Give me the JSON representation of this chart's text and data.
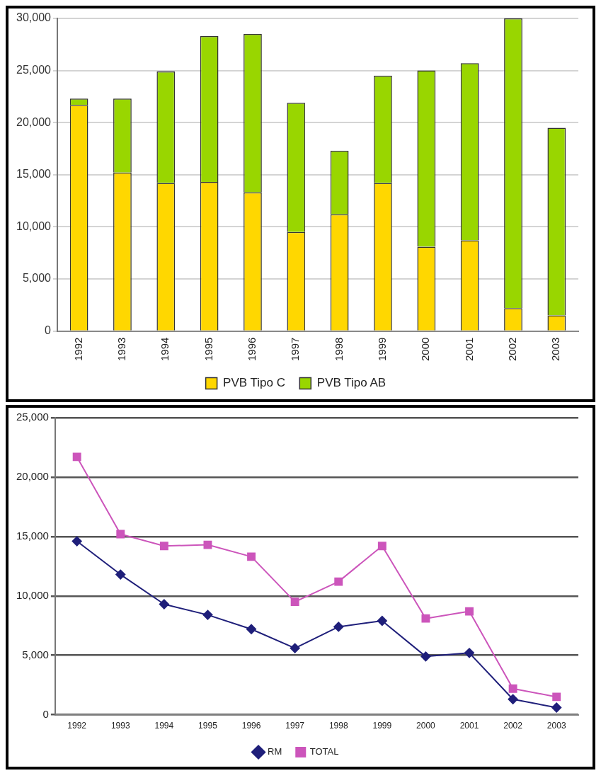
{
  "chart_data": [
    {
      "type": "bar",
      "stacked": true,
      "categories": [
        "1992",
        "1993",
        "1994",
        "1995",
        "1996",
        "1997",
        "1998",
        "1999",
        "2000",
        "2001",
        "2002",
        "2003"
      ],
      "series": [
        {
          "name": "PVB Tipo C",
          "color": "#ffd700",
          "values": [
            21700,
            15200,
            14200,
            14300,
            13300,
            9500,
            11200,
            14200,
            8100,
            8700,
            2200,
            1500
          ]
        },
        {
          "name": "PVB Tipo AB",
          "color": "#99d600",
          "values": [
            600,
            7100,
            10700,
            14000,
            15200,
            12400,
            6100,
            10300,
            16900,
            17000,
            27800,
            18000
          ]
        }
      ],
      "ylim": [
        0,
        30000
      ],
      "yticks": [
        0,
        {
          "value": 5000,
          "label": "5,000"
        },
        {
          "value": 10000,
          "label": "10,000"
        },
        {
          "value": 15000,
          "label": "15,000"
        },
        {
          "value": 20000,
          "label": "20,000"
        },
        {
          "value": 25000,
          "label": "25,000"
        },
        {
          "value": 30000,
          "label": "30,000"
        }
      ],
      "grid": "y",
      "legend": "bottom"
    },
    {
      "type": "line",
      "categories": [
        "1992",
        "1993",
        "1994",
        "1995",
        "1996",
        "1997",
        "1998",
        "1999",
        "2000",
        "2001",
        "2002",
        "2003"
      ],
      "series": [
        {
          "name": "RM",
          "color": "#1f1f7a",
          "marker": "diamond",
          "values": [
            14600,
            11800,
            9300,
            8400,
            7200,
            5600,
            7400,
            7900,
            4900,
            5200,
            1300,
            600
          ]
        },
        {
          "name": "TOTAL",
          "color": "#cc55bb",
          "marker": "square",
          "values": [
            21700,
            15200,
            14200,
            14300,
            13300,
            9500,
            11200,
            14200,
            8100,
            8700,
            2200,
            1500
          ]
        }
      ],
      "ylim": [
        0,
        25000
      ],
      "yticks": [
        0,
        {
          "value": 5000,
          "label": "5,000"
        },
        {
          "value": 10000,
          "label": "10,000"
        },
        {
          "value": 15000,
          "label": "15,000"
        },
        {
          "value": 20000,
          "label": "20,000"
        },
        {
          "value": 25000,
          "label": "25,000"
        }
      ],
      "grid": "y",
      "legend": "bottom"
    }
  ]
}
